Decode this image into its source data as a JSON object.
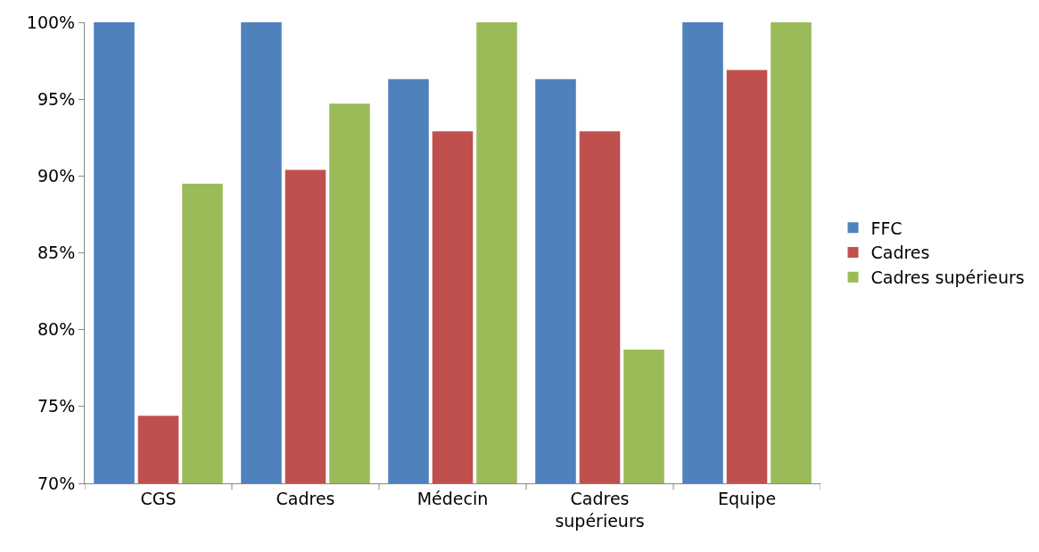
{
  "chart_data": {
    "type": "bar",
    "categories": [
      "CGS",
      "Cadres",
      "Médecin",
      "Cadres supérieurs",
      "Equipe"
    ],
    "series": [
      {
        "name": "FFC",
        "color": "#4f81bd",
        "values": [
          100,
          100,
          96.3,
          96.3,
          100
        ]
      },
      {
        "name": "Cadres",
        "color": "#c0504d",
        "values": [
          74.4,
          90.4,
          92.9,
          92.9,
          96.9
        ]
      },
      {
        "name": "Cadres supérieurs",
        "color": "#9bbb59",
        "values": [
          89.5,
          94.7,
          100,
          78.7,
          100
        ]
      }
    ],
    "ylim": [
      70,
      100
    ],
    "yticks": [
      {
        "value": 70,
        "label": "70%"
      },
      {
        "value": 75,
        "label": "75%"
      },
      {
        "value": 80,
        "label": "80%"
      },
      {
        "value": 85,
        "label": "85%"
      },
      {
        "value": 90,
        "label": "90%"
      },
      {
        "value": 95,
        "label": "95%"
      },
      {
        "value": 100,
        "label": "100%"
      }
    ],
    "legend": "right"
  }
}
